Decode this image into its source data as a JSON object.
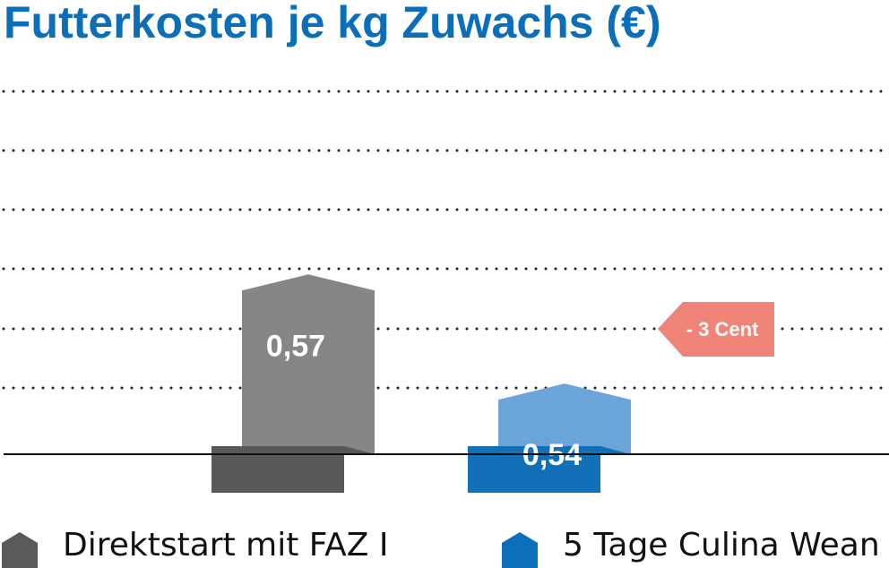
{
  "title": "Futterkosten je kg Zuwachs (€)",
  "colors": {
    "title": "#0a6fb8",
    "grid": "#222222",
    "baseline": "#111111",
    "value_text": "#ffffff",
    "callout_bg": "#f08478",
    "callout_text": "#ffffff"
  },
  "chart_data": {
    "type": "bar",
    "title": "Futterkosten je kg Zuwachs (€)",
    "categories": [
      "Direktstart mit FAZ I",
      "5 Tage Culina Wean"
    ],
    "values": [
      0.57,
      0.54
    ],
    "value_labels": [
      "0,57",
      "0,54"
    ],
    "grid": true,
    "legend_placement": "bottom",
    "series_colors": [
      {
        "front": "#868686",
        "base": "#585858"
      },
      {
        "front": "#6aa4d8",
        "base": "#1170b8"
      }
    ],
    "annotation": "- 3 Cent"
  },
  "legend": [
    {
      "label": "Direktstart mit FAZ I",
      "icon": "house-gray-icon",
      "color": "#595959"
    },
    {
      "label": "5 Tage Culina Wean",
      "icon": "house-blue-icon",
      "color": "#0a6fb8"
    }
  ]
}
